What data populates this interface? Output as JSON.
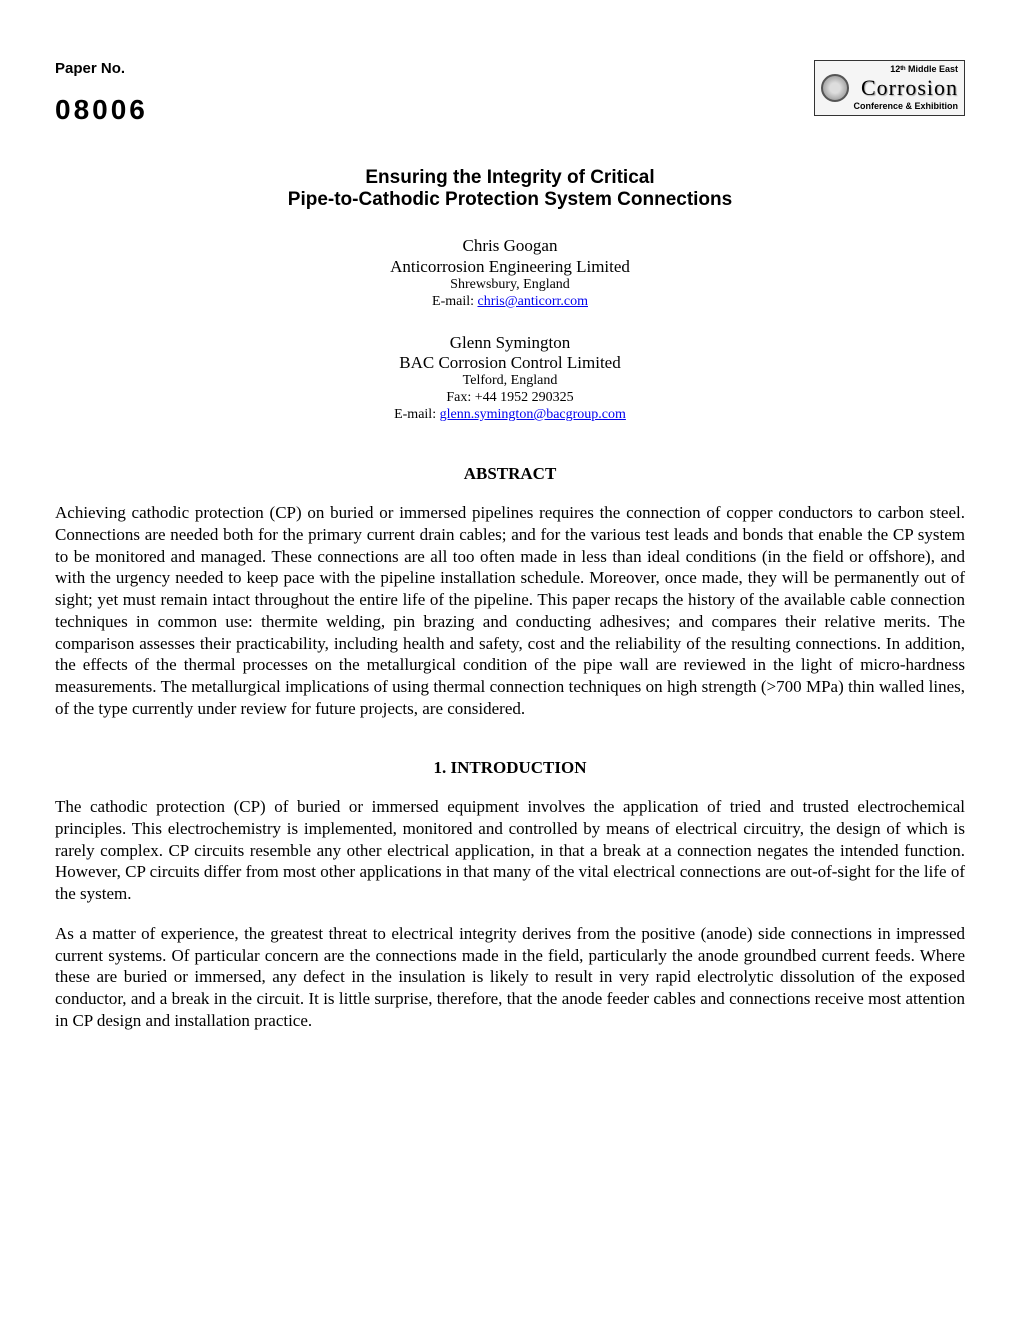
{
  "header": {
    "paper_label": "Paper No.",
    "paper_id": "08006",
    "logo_top": "12ᵗʰ Middle East",
    "logo_middle": "Corrosion",
    "logo_bottom": "Conference & Exhibition"
  },
  "title_line1": "Ensuring the Integrity of Critical",
  "title_line2": "Pipe-to-Cathodic Protection System Connections",
  "authors": [
    {
      "name": "Chris Googan",
      "affiliation": "Anticorrosion Engineering Limited",
      "location": "Shrewsbury, England",
      "email_prefix": "E-mail: ",
      "email": "chris@anticorr.com"
    },
    {
      "name": "Glenn Symington",
      "affiliation": "BAC Corrosion Control Limited",
      "location": "Telford, England",
      "fax": "Fax: +44 1952 290325",
      "email_prefix": "E-mail: ",
      "email": "glenn.symington@bacgroup.com"
    }
  ],
  "abstract_heading": "ABSTRACT",
  "abstract_text": "Achieving cathodic protection (CP) on buried or immersed pipelines requires the connection of copper conductors to carbon steel.  Connections are needed both for the primary current drain cables; and for the various test leads and bonds that enable the CP system to be monitored and managed.  These connections are all too often made in less than ideal conditions (in the field or offshore), and with the urgency needed to keep pace with the pipeline installation schedule.  Moreover, once made, they will be permanently out of sight; yet must remain intact throughout the entire life of the pipeline.  This paper recaps the history of the available cable connection techniques in common use: thermite welding, pin brazing and conducting adhesives; and compares their relative merits.  The comparison assesses their practicability, including health and safety, cost and the reliability of the resulting connections.  In addition, the effects of the thermal processes on the metallurgical condition of the pipe wall are reviewed in the light of micro-hardness measurements.  The metallurgical implications of using thermal connection techniques on high strength (>700 MPa) thin walled lines, of the type currently under review for future projects, are considered.",
  "intro_heading": "1.  INTRODUCTION",
  "intro_p1": "The cathodic protection (CP) of buried or immersed equipment involves the application of tried and trusted electrochemical principles.  This electrochemistry is implemented, monitored and controlled by means of electrical circuitry, the design of which is rarely complex.  CP circuits resemble any other electrical application, in that a break at a connection negates the intended function.  However, CP circuits differ from most other applications in that many of the vital electrical connections are out-of-sight for the life of the system.",
  "intro_p2": "As a matter of experience, the greatest threat to electrical integrity derives from the positive (anode) side connections in impressed current systems.  Of particular concern are the connections made in the field, particularly the anode groundbed current feeds.  Where these are buried or immersed, any defect in the insulation is likely to result in very rapid electrolytic dissolution of the exposed conductor, and a break in the circuit.  It is little surprise, therefore, that the anode feeder cables and connections receive most attention in CP design and installation practice.",
  "styles": {
    "background_color": "#ffffff",
    "text_color": "#000000",
    "link_color": "#0000ee",
    "body_font": "Times New Roman",
    "header_font": "Arial",
    "body_fontsize": 17,
    "title_fontsize": 19,
    "small_fontsize": 14
  }
}
